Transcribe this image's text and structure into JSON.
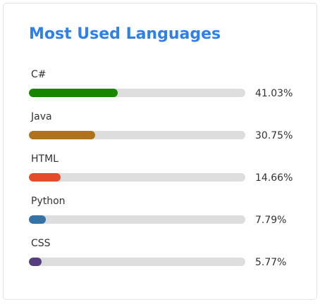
{
  "card": {
    "title": "Most Used Languages"
  },
  "languages": [
    {
      "name": "C#",
      "percent_label": "41.03%",
      "percent": 41.03,
      "color": "#178600"
    },
    {
      "name": "Java",
      "percent_label": "30.75%",
      "percent": 30.75,
      "color": "#b07219"
    },
    {
      "name": "HTML",
      "percent_label": "14.66%",
      "percent": 14.66,
      "color": "#e34c26"
    },
    {
      "name": "Python",
      "percent_label": "7.79%",
      "percent": 7.79,
      "color": "#3572a5"
    },
    {
      "name": "CSS",
      "percent_label": "5.77%",
      "percent": 5.77,
      "color": "#563d7c"
    }
  ]
}
